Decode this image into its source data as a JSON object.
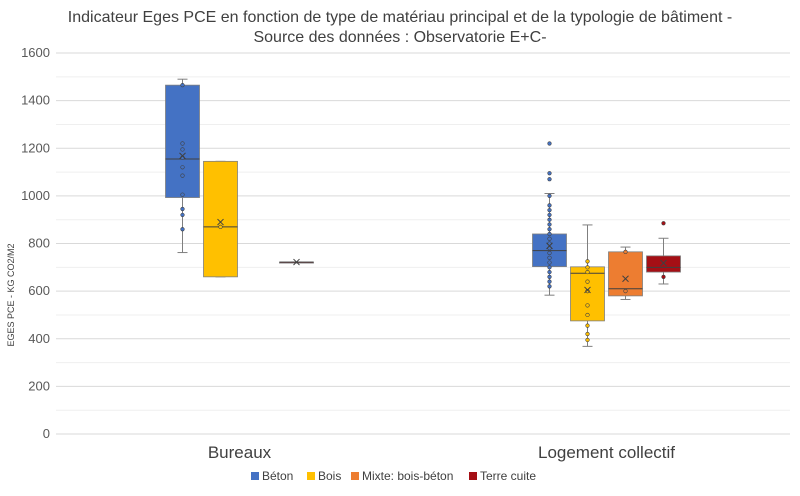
{
  "chart_data": {
    "type": "boxplot",
    "title_lines": [
      "Indicateur Eges PCE en fonction de type de matériau principal et de la typologie de bâtiment -",
      "Source des données : Observatorie E+C-"
    ],
    "ylabel": "EGES PCE - KG CO2/M2",
    "ylim": [
      0,
      1600
    ],
    "yticks": [
      0,
      200,
      400,
      600,
      800,
      1000,
      1200,
      1400,
      1600
    ],
    "ytick_labels": [
      "0",
      "200",
      "400",
      "600",
      "800",
      "1000",
      "1200",
      "1400",
      "1600"
    ],
    "grid": true,
    "legend_position": "bottom",
    "categories": [
      "Bureaux",
      "Logement collectif"
    ],
    "series": [
      {
        "name": "Béton",
        "color": "#4472C4",
        "boxes": [
          {
            "min": 762,
            "q1": 993,
            "median": 1155,
            "q3": 1465,
            "max": 1490,
            "mean": 1168,
            "points": [
              860,
              920,
              945,
              1005,
              1085,
              1120,
              1160,
              1195,
              1220,
              1465
            ]
          },
          {
            "min": 583,
            "q1": 703,
            "median": 770,
            "q3": 840,
            "max": 1010,
            "mean": 790,
            "points": [
              620,
              640,
              660,
              680,
              700,
              720,
              740,
              760,
              780,
              800,
              820,
              840,
              860,
              880,
              900,
              920,
              940,
              960,
              1000,
              1070,
              1095,
              1220
            ]
          }
        ]
      },
      {
        "name": "Bois",
        "color": "#FFC000",
        "boxes": [
          {
            "min": 660,
            "q1": 660,
            "median": 870,
            "q3": 1145,
            "max": 1145,
            "mean": 890,
            "points": [
              870
            ]
          },
          {
            "min": 368,
            "q1": 475,
            "median": 675,
            "q3": 702,
            "max": 878,
            "mean": 605,
            "points": [
              395,
              420,
              455,
              500,
              540,
              600,
              640,
              680,
              700,
              725
            ]
          }
        ]
      },
      {
        "name": "Mixte: bois-béton",
        "color": "#ED7D31",
        "boxes": [
          null,
          {
            "min": 565,
            "q1": 580,
            "median": 610,
            "q3": 765,
            "max": 785,
            "mean": 652,
            "points": [
              600,
              765
            ]
          }
        ]
      },
      {
        "name": "Terre cuite",
        "color": "#A50F15",
        "boxes": [
          {
            "min": 722,
            "q1": 722,
            "median": 722,
            "q3": 722,
            "max": 722,
            "mean": 722,
            "points": []
          },
          {
            "min": 630,
            "q1": 680,
            "median": 700,
            "q3": 748,
            "max": 822,
            "mean": 718,
            "points": [
              660,
              885
            ]
          }
        ]
      }
    ]
  }
}
